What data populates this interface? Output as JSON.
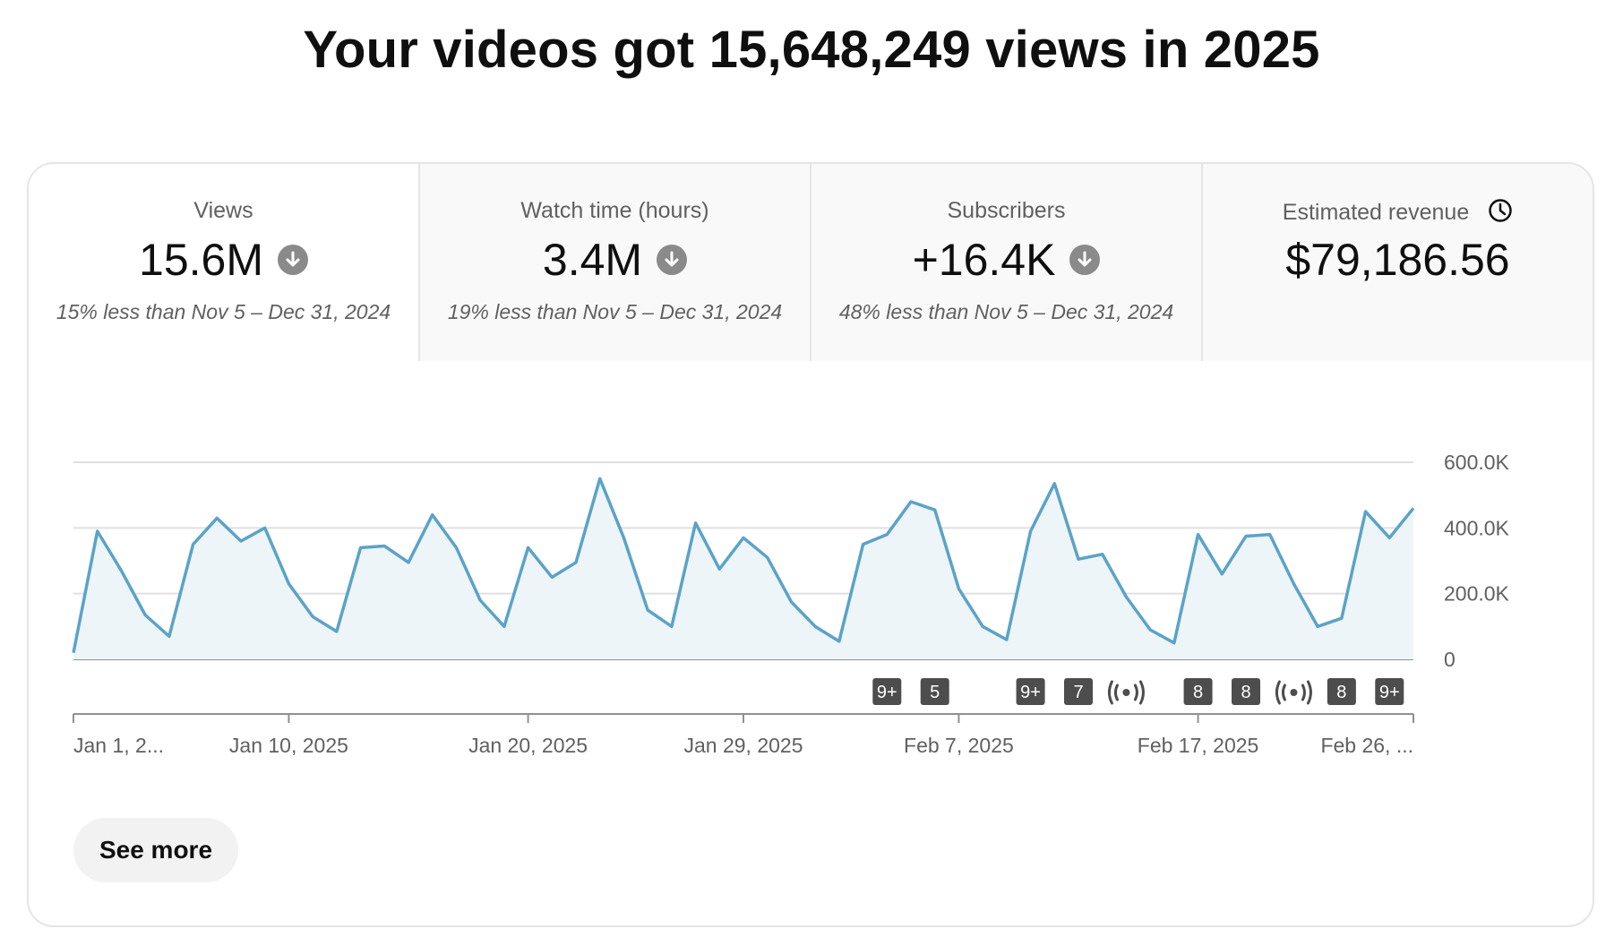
{
  "headline": "Your videos got 15,648,249 views in 2025",
  "metrics": [
    {
      "label": "Views",
      "value": "15.6M",
      "trend": "down",
      "compare": "15% less than Nov 5 – Dec 31, 2024",
      "selected": true
    },
    {
      "label": "Watch time (hours)",
      "value": "3.4M",
      "trend": "down",
      "compare": "19% less than Nov 5 – Dec 31, 2024"
    },
    {
      "label": "Subscribers",
      "value": "+16.4K",
      "trend": "down",
      "compare": "48% less than Nov 5 – Dec 31, 2024"
    },
    {
      "label": "Estimated revenue",
      "value": "$79,186.56",
      "label_icon": "clock-icon"
    }
  ],
  "see_more_label": "See more",
  "chart_data": {
    "type": "area",
    "series": [
      {
        "color": "#5ba3c7",
        "fill": "#eef5f9",
        "values": [
          20000,
          390000,
          270000,
          135000,
          70000,
          350000,
          430000,
          360000,
          400000,
          230000,
          130000,
          85000,
          340000,
          345000,
          295000,
          440000,
          340000,
          180000,
          100000,
          340000,
          250000,
          295000,
          550000,
          370000,
          150000,
          100000,
          415000,
          275000,
          370000,
          310000,
          175000,
          100000,
          55000,
          350000,
          380000,
          480000,
          455000,
          215000,
          100000,
          60000,
          390000,
          535000,
          305000,
          320000,
          190000,
          90000,
          50000,
          380000,
          260000,
          375000,
          380000,
          230000,
          100000,
          125000,
          450000,
          370000,
          460000
        ]
      }
    ],
    "x_tick_labels": [
      "Jan 1, 2...",
      "Jan 10, 2025",
      "Jan 20, 2025",
      "Jan 29, 2025",
      "Feb 7, 2025",
      "Feb 17, 2025",
      "Feb 26, ..."
    ],
    "x_tick_indices": [
      0,
      9,
      19,
      28,
      37,
      47,
      56
    ],
    "y_tick_labels": [
      "0",
      "200.0K",
      "400.0K",
      "600.0K"
    ],
    "y_tick_values": [
      0,
      200000,
      400000,
      600000
    ],
    "ylim": [
      0,
      600000
    ],
    "grid": true,
    "markers": [
      {
        "index": 34,
        "kind": "count",
        "label": "9+"
      },
      {
        "index": 36,
        "kind": "count",
        "label": "5"
      },
      {
        "index": 40,
        "kind": "count",
        "label": "9+"
      },
      {
        "index": 42,
        "kind": "count",
        "label": "7"
      },
      {
        "index": 44,
        "kind": "live",
        "icon": "live-broadcast-icon"
      },
      {
        "index": 47,
        "kind": "count",
        "label": "8"
      },
      {
        "index": 49,
        "kind": "count",
        "label": "8"
      },
      {
        "index": 51,
        "kind": "live",
        "icon": "live-broadcast-icon"
      },
      {
        "index": 53,
        "kind": "count",
        "label": "8"
      },
      {
        "index": 55,
        "kind": "count",
        "label": "9+"
      }
    ]
  }
}
